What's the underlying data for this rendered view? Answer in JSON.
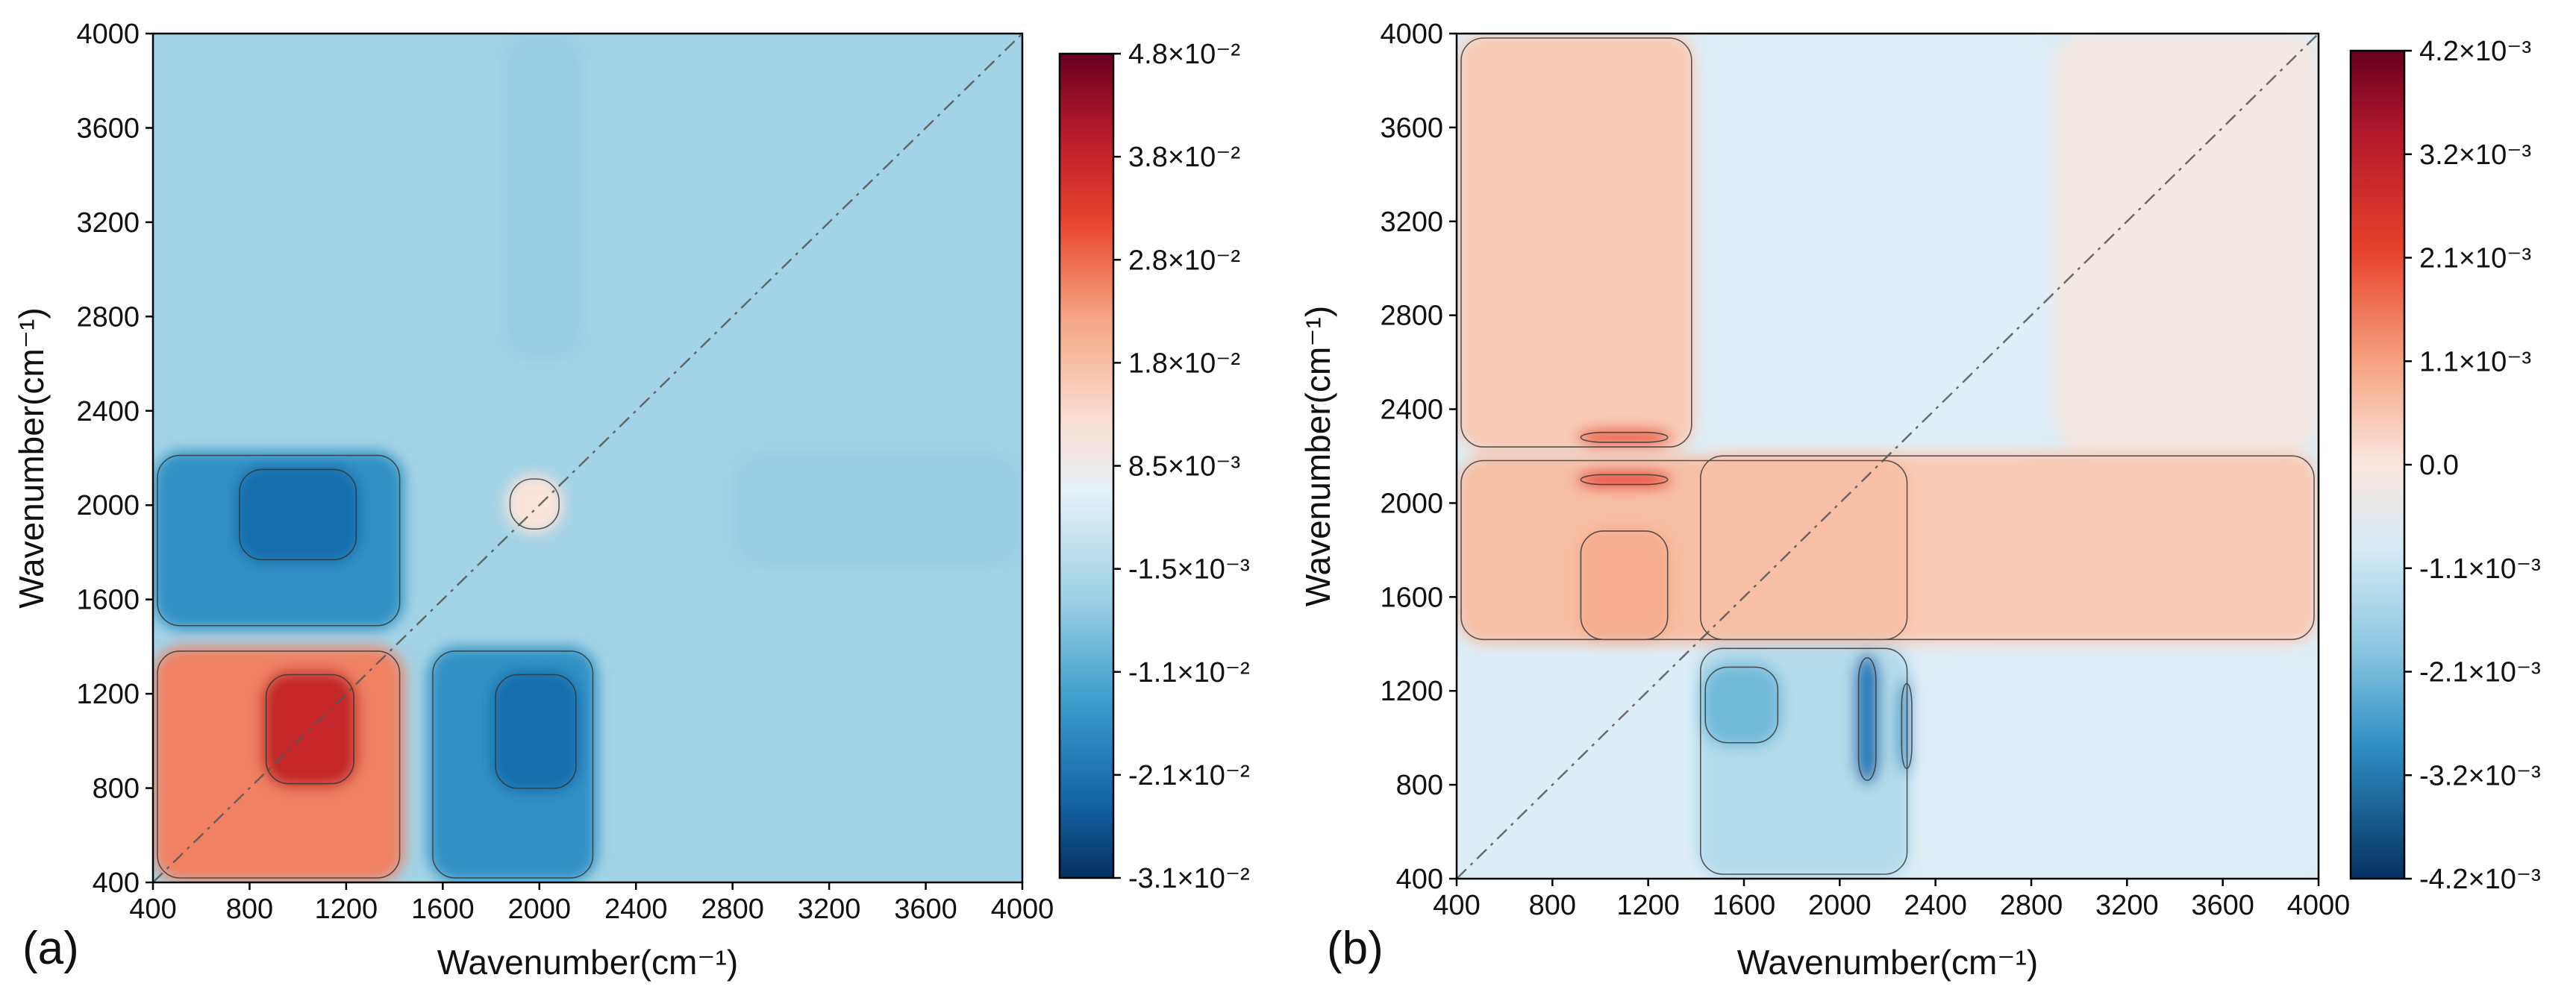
{
  "chart_data": [
    {
      "type": "heatmap",
      "panel_label": "(a)",
      "xlabel": "Wavenumber(cm⁻¹)",
      "ylabel": "Wavenumber(cm⁻¹)",
      "xlim": [
        400,
        4000
      ],
      "ylim": [
        400,
        4000
      ],
      "x_ticks": [
        "400",
        "800",
        "1200",
        "1600",
        "2000",
        "2400",
        "2800",
        "3200",
        "3600",
        "4000"
      ],
      "y_ticks": [
        "400",
        "800",
        "1200",
        "1600",
        "2000",
        "2400",
        "2800",
        "3200",
        "3600",
        "4000"
      ],
      "colorbar": {
        "ticks": [
          "4.8×10⁻²",
          "3.8×10⁻²",
          "2.8×10⁻²",
          "1.8×10⁻²",
          "8.5×10⁻³",
          "-1.5×10⁻³",
          "-1.1×10⁻²",
          "-2.1×10⁻²",
          "-3.1×10⁻²"
        ],
        "min": -0.031,
        "max": 0.048
      },
      "regions": [
        {
          "x": [
            400,
            1440
          ],
          "y": [
            400,
            1400
          ],
          "value": 0.025
        },
        {
          "x": [
            850,
            1250
          ],
          "y": [
            800,
            1300
          ],
          "value": 0.038
        },
        {
          "x": [
            400,
            1440
          ],
          "y": [
            1470,
            2230
          ],
          "value": -0.016
        },
        {
          "x": [
            740,
            1260
          ],
          "y": [
            1750,
            2170
          ],
          "value": -0.022
        },
        {
          "x": [
            1540,
            2240
          ],
          "y": [
            400,
            1400
          ],
          "value": -0.016
        },
        {
          "x": [
            1800,
            2170
          ],
          "y": [
            780,
            1300
          ],
          "value": -0.022
        },
        {
          "x": [
            1850,
            2180
          ],
          "y": [
            2620,
            4000
          ],
          "value": -0.005
        },
        {
          "x": [
            2800,
            4000
          ],
          "y": [
            1740,
            2220
          ],
          "value": -0.005
        },
        {
          "x": [
            1860,
            2100
          ],
          "y": [
            1880,
            2130
          ],
          "value": 0.011
        }
      ],
      "annotations": [
        "diagonal reference line"
      ]
    },
    {
      "type": "heatmap",
      "panel_label": "(b)",
      "xlabel": "Wavenumber(cm⁻¹)",
      "ylabel": "Wavenumber(cm⁻¹)",
      "xlim": [
        400,
        4000
      ],
      "ylim": [
        400,
        4000
      ],
      "x_ticks": [
        "400",
        "800",
        "1200",
        "1600",
        "2000",
        "2400",
        "2800",
        "3200",
        "3600",
        "4000"
      ],
      "y_ticks": [
        "400",
        "800",
        "1200",
        "1600",
        "2000",
        "2400",
        "2800",
        "3200",
        "3600",
        "4000"
      ],
      "colorbar": {
        "ticks": [
          "4.2×10⁻³",
          "3.2×10⁻³",
          "2.1×10⁻³",
          "1.1×10⁻³",
          "0.0",
          "-1.1×10⁻³",
          "-2.1×10⁻³",
          "-3.2×10⁻³",
          "-4.2×10⁻³"
        ],
        "min": -0.0042,
        "max": 0.0042
      },
      "regions": [
        {
          "x": [
            400,
            1400
          ],
          "y": [
            2220,
            4000
          ],
          "value": 0.0007
        },
        {
          "x": [
            1400,
            4000
          ],
          "y": [
            1400,
            2220
          ],
          "value": 0.0007
        },
        {
          "x": [
            400,
            2300
          ],
          "y": [
            1400,
            2200
          ],
          "value": 0.0009
        },
        {
          "x": [
            900,
            1300
          ],
          "y": [
            1400,
            1900
          ],
          "value": 0.0012
        },
        {
          "x": [
            900,
            1300
          ],
          "y": [
            2240,
            2320
          ],
          "value": 0.0021
        },
        {
          "x": [
            900,
            1300
          ],
          "y": [
            2060,
            2140
          ],
          "value": 0.0024
        },
        {
          "x": [
            1400,
            2300
          ],
          "y": [
            400,
            1400
          ],
          "value": -0.001
        },
        {
          "x": [
            2060,
            2170
          ],
          "y": [
            800,
            1360
          ],
          "value": -0.003
        },
        {
          "x": [
            2240,
            2320
          ],
          "y": [
            850,
            1250
          ],
          "value": -0.0025
        },
        {
          "x": [
            1420,
            1760
          ],
          "y": [
            960,
            1320
          ],
          "value": -0.0018
        },
        {
          "x": [
            1400,
            2900
          ],
          "y": [
            2220,
            4000
          ],
          "value": -0.0003
        },
        {
          "x": [
            2300,
            4000
          ],
          "y": [
            400,
            1400
          ],
          "value": -0.0003
        },
        {
          "x": [
            2900,
            4000
          ],
          "y": [
            2220,
            4000
          ],
          "value": 0.0001
        }
      ],
      "annotations": [
        "diagonal reference line"
      ]
    }
  ]
}
